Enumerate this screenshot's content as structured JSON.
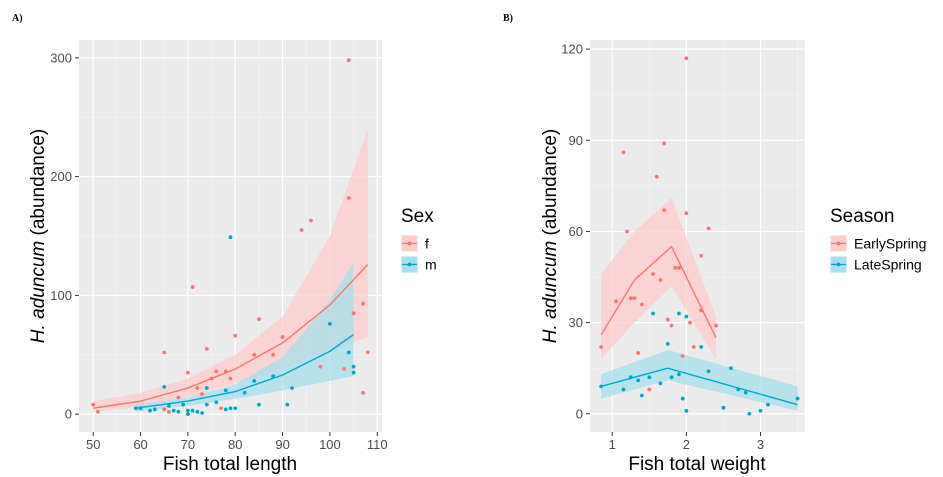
{
  "chart_data": [
    {
      "panel_label": "A)",
      "type": "scatter",
      "xlabel": "Fish total length",
      "ylabel_italic": "H. aduncum",
      "ylabel_rest": " (abundance)",
      "xlim": [
        47,
        111
      ],
      "ylim": [
        -15,
        315
      ],
      "xticks": [
        50,
        60,
        70,
        80,
        90,
        100,
        110
      ],
      "yticks": [
        0,
        100,
        200,
        300
      ],
      "grid": true,
      "legend": {
        "title": "Sex",
        "placement": "right"
      },
      "series": [
        {
          "name": "f",
          "color": "#F8766D",
          "band_color": "#FFCCCC",
          "points": [
            [
              50,
              8
            ],
            [
              51,
              2
            ],
            [
              65,
              52
            ],
            [
              65,
              4
            ],
            [
              66,
              2
            ],
            [
              68,
              14
            ],
            [
              70,
              3
            ],
            [
              70,
              35
            ],
            [
              71,
              107
            ],
            [
              72,
              22
            ],
            [
              73,
              17
            ],
            [
              74,
              55
            ],
            [
              75,
              30
            ],
            [
              76,
              36
            ],
            [
              77,
              5
            ],
            [
              78,
              36
            ],
            [
              79,
              30
            ],
            [
              80,
              66
            ],
            [
              84,
              50
            ],
            [
              85,
              80
            ],
            [
              88,
              50
            ],
            [
              90,
              65
            ],
            [
              94,
              155
            ],
            [
              96,
              163
            ],
            [
              98,
              40
            ],
            [
              103,
              38
            ],
            [
              104,
              182
            ],
            [
              104,
              298
            ],
            [
              105,
              85
            ],
            [
              107,
              93
            ],
            [
              107,
              18
            ],
            [
              108,
              52
            ]
          ],
          "fit": [
            [
              50,
              5
            ],
            [
              60,
              11
            ],
            [
              70,
              22
            ],
            [
              80,
              38
            ],
            [
              90,
              60
            ],
            [
              100,
              92
            ],
            [
              108,
              126
            ]
          ],
          "band_upper": [
            [
              50,
              11
            ],
            [
              60,
              18
            ],
            [
              70,
              30
            ],
            [
              80,
              50
            ],
            [
              90,
              82
            ],
            [
              100,
              150
            ],
            [
              108,
              240
            ]
          ],
          "band_lower": [
            [
              50,
              2
            ],
            [
              60,
              6
            ],
            [
              70,
              14
            ],
            [
              80,
              26
            ],
            [
              90,
              38
            ],
            [
              100,
              55
            ],
            [
              108,
              65
            ]
          ]
        },
        {
          "name": "m",
          "color": "#00A9CC",
          "band_color": "#A6DEEB",
          "points": [
            [
              59,
              5
            ],
            [
              60,
              5
            ],
            [
              62,
              3
            ],
            [
              63,
              4
            ],
            [
              65,
              23
            ],
            [
              66,
              7
            ],
            [
              67,
              3
            ],
            [
              68,
              2
            ],
            [
              69,
              8
            ],
            [
              70,
              0
            ],
            [
              70,
              3
            ],
            [
              71,
              3
            ],
            [
              72,
              2
            ],
            [
              73,
              1
            ],
            [
              74,
              8
            ],
            [
              74,
              22
            ],
            [
              76,
              10
            ],
            [
              78,
              4
            ],
            [
              78,
              20
            ],
            [
              79,
              149
            ],
            [
              79,
              5
            ],
            [
              80,
              5
            ],
            [
              82,
              18
            ],
            [
              84,
              28
            ],
            [
              85,
              8
            ],
            [
              88,
              32
            ],
            [
              91,
              8
            ],
            [
              92,
              22
            ],
            [
              100,
              76
            ],
            [
              104,
              52
            ],
            [
              105,
              40
            ],
            [
              105,
              35
            ]
          ],
          "fit": [
            [
              59,
              5
            ],
            [
              70,
              11
            ],
            [
              80,
              19
            ],
            [
              90,
              33
            ],
            [
              100,
              53
            ],
            [
              105,
              67
            ]
          ],
          "band_upper": [
            [
              59,
              8
            ],
            [
              70,
              14
            ],
            [
              80,
              25
            ],
            [
              90,
              48
            ],
            [
              100,
              96
            ],
            [
              105,
              128
            ]
          ],
          "band_lower": [
            [
              59,
              2
            ],
            [
              70,
              7
            ],
            [
              80,
              13
            ],
            [
              90,
              20
            ],
            [
              100,
              28
            ],
            [
              105,
              32
            ]
          ]
        }
      ]
    },
    {
      "panel_label": "B)",
      "type": "scatter",
      "xlabel": "Fish total weight",
      "ylabel_italic": "H. aduncum",
      "ylabel_rest": " (abundance)",
      "xlim": [
        0.7,
        3.6
      ],
      "ylim": [
        -6,
        123
      ],
      "xticks": [
        1,
        2,
        3
      ],
      "yticks": [
        0,
        30,
        60,
        90,
        120
      ],
      "grid": true,
      "legend": {
        "title": "Season",
        "placement": "right"
      },
      "series": [
        {
          "name": "EarlySpring",
          "color": "#F8766D",
          "band_color": "#FFCCCC",
          "points": [
            [
              0.85,
              22
            ],
            [
              1.05,
              37
            ],
            [
              1.15,
              86
            ],
            [
              1.2,
              60
            ],
            [
              1.25,
              38
            ],
            [
              1.3,
              38
            ],
            [
              1.35,
              20
            ],
            [
              1.4,
              36
            ],
            [
              1.5,
              8
            ],
            [
              1.55,
              46
            ],
            [
              1.6,
              78
            ],
            [
              1.65,
              44
            ],
            [
              1.7,
              89
            ],
            [
              1.7,
              67
            ],
            [
              1.75,
              31
            ],
            [
              1.8,
              29
            ],
            [
              1.85,
              48
            ],
            [
              1.9,
              48
            ],
            [
              1.95,
              19
            ],
            [
              2.0,
              117
            ],
            [
              2.0,
              66
            ],
            [
              2.05,
              30
            ],
            [
              2.1,
              22
            ],
            [
              2.2,
              52
            ],
            [
              2.2,
              34
            ],
            [
              2.3,
              61
            ],
            [
              2.4,
              29
            ]
          ],
          "fit": [
            [
              0.85,
              26
            ],
            [
              1.3,
              44
            ],
            [
              1.8,
              55
            ],
            [
              2.4,
              25
            ]
          ],
          "band_upper": [
            [
              0.85,
              46
            ],
            [
              1.3,
              60
            ],
            [
              1.8,
              71
            ],
            [
              2.4,
              32
            ]
          ],
          "band_lower": [
            [
              0.85,
              18
            ],
            [
              1.3,
              30
            ],
            [
              1.8,
              42
            ],
            [
              2.4,
              18
            ]
          ]
        },
        {
          "name": "LateSpring",
          "color": "#00A9CC",
          "band_color": "#A6DEEB",
          "points": [
            [
              0.85,
              9
            ],
            [
              1.25,
              12
            ],
            [
              1.35,
              11
            ],
            [
              1.4,
              6
            ],
            [
              1.5,
              12
            ],
            [
              1.55,
              33
            ],
            [
              1.65,
              10
            ],
            [
              1.75,
              23
            ],
            [
              1.8,
              12
            ],
            [
              1.9,
              13
            ],
            [
              1.9,
              33
            ],
            [
              1.95,
              5
            ],
            [
              2.0,
              1
            ],
            [
              2.0,
              32
            ],
            [
              2.3,
              14
            ],
            [
              2.5,
              2
            ],
            [
              2.6,
              15
            ],
            [
              2.7,
              8
            ],
            [
              2.8,
              7
            ],
            [
              2.85,
              0
            ],
            [
              3.0,
              1
            ],
            [
              3.1,
              3
            ],
            [
              3.5,
              5
            ],
            [
              2.2,
              22
            ],
            [
              1.15,
              8
            ]
          ],
          "fit": [
            [
              0.85,
              9
            ],
            [
              1.75,
              15
            ],
            [
              3.5,
              3
            ]
          ],
          "band_upper": [
            [
              0.85,
              13
            ],
            [
              1.75,
              21
            ],
            [
              3.5,
              9
            ]
          ],
          "band_lower": [
            [
              0.85,
              5
            ],
            [
              1.75,
              11
            ],
            [
              3.5,
              1
            ]
          ]
        }
      ]
    }
  ]
}
